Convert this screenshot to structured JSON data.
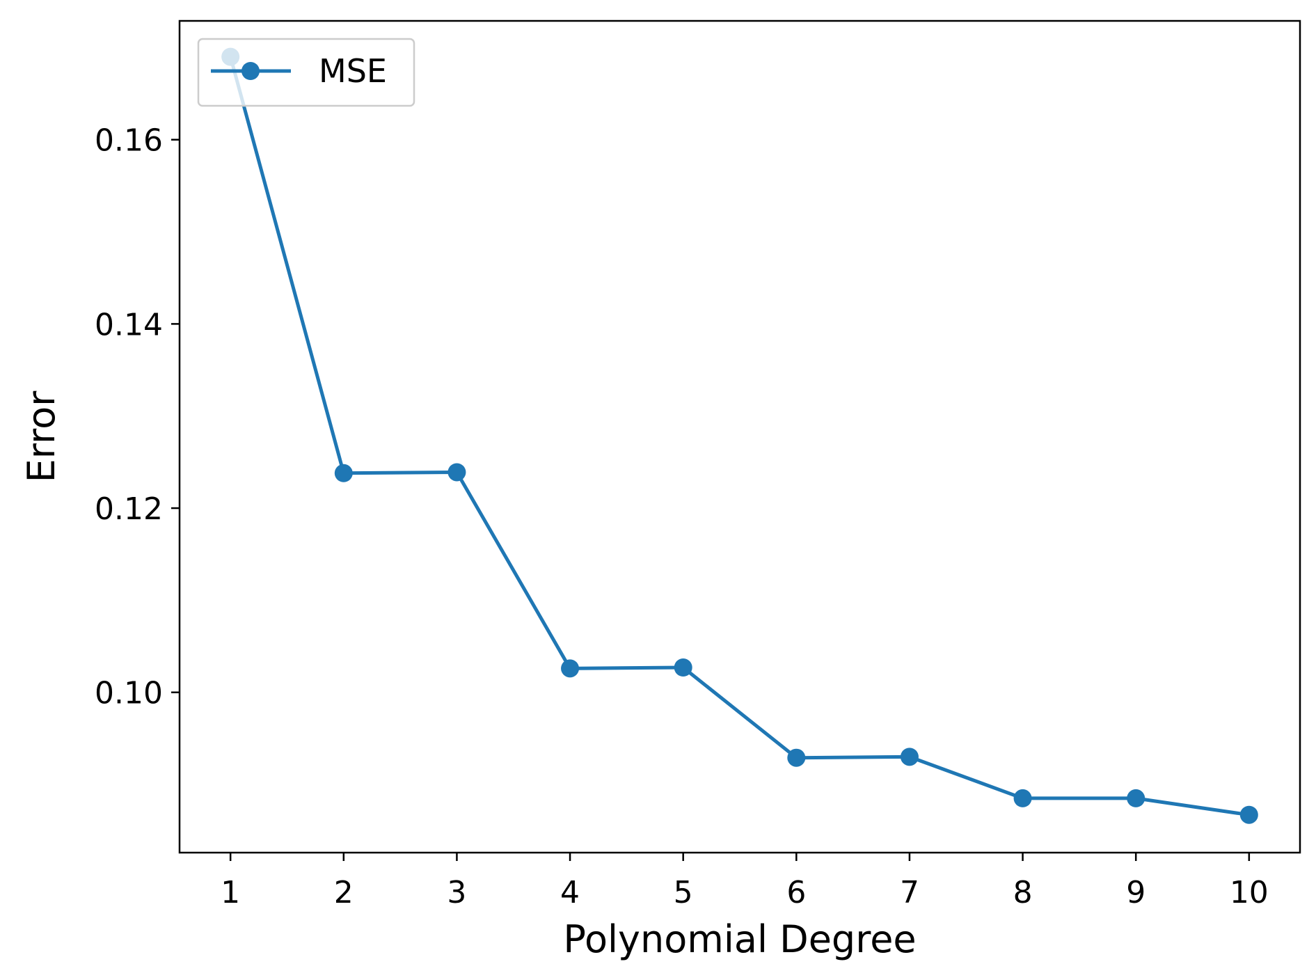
{
  "chart_data": {
    "type": "line",
    "title": "",
    "xlabel": "Polynomial Degree",
    "ylabel": "Error",
    "x": [
      1,
      2,
      3,
      4,
      5,
      6,
      7,
      8,
      9,
      10
    ],
    "x_tick_labels": [
      "1",
      "2",
      "3",
      "4",
      "5",
      "6",
      "7",
      "8",
      "9",
      "10"
    ],
    "y_ticks": [
      0.1,
      0.12,
      0.14,
      0.16
    ],
    "y_tick_labels": [
      "0.10",
      "0.12",
      "0.14",
      "0.16"
    ],
    "xlim": [
      0.55,
      10.45
    ],
    "ylim": [
      0.0826,
      0.1729
    ],
    "grid": false,
    "legend_position": "upper-left",
    "series": [
      {
        "name": "MSE",
        "color": "#1f77b4",
        "marker": "circle",
        "values": [
          0.169,
          0.1238,
          0.1239,
          0.1026,
          0.1027,
          0.0929,
          0.093,
          0.0885,
          0.0885,
          0.0867
        ]
      }
    ]
  }
}
